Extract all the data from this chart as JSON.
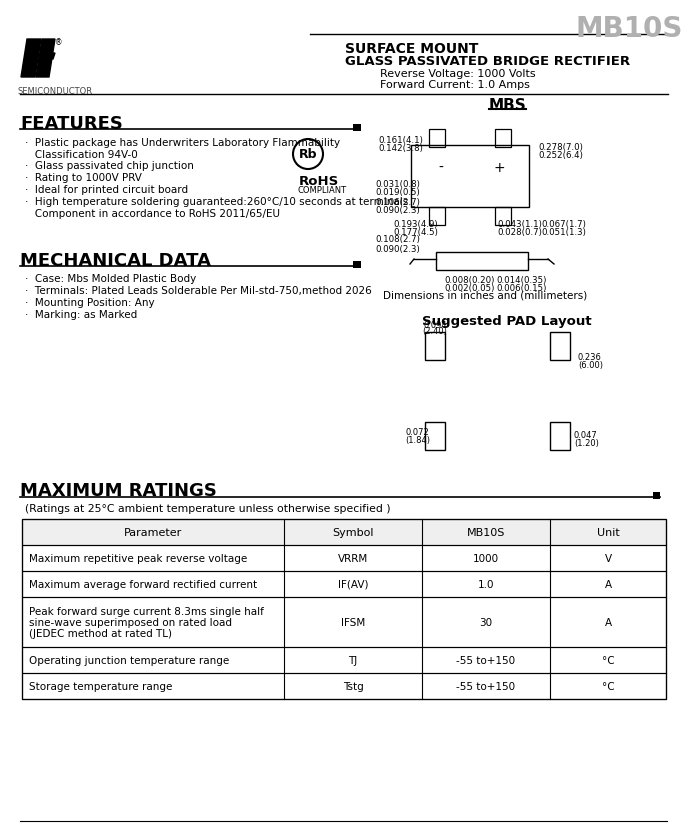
{
  "title": "MB10S",
  "subtitle1": "SURFACE MOUNT",
  "subtitle2": "GLASS PASSIVATED BRIDGE RECTIFIER",
  "rev_voltage": "Reverse Voltage: 1000 Volts",
  "fwd_current": "Forward Current: 1.0 Amps",
  "package": "MBS",
  "features_title": "FEATURES",
  "features": [
    "Plastic package has Underwriters Laboratory Flammability\n   Classification 94V-0",
    "Glass passivated chip junction",
    "Rating to 1000V PRV",
    "Ideal for printed circuit board",
    "High temperature soldering guaranteed:260°C/10 seconds at terminals\n   Component in accordance to RoHS 2011/65/EU"
  ],
  "mech_title": "MECHANICAL DATA",
  "mech_items": [
    "Case: Mbs Molded Plastic Body",
    "Terminals: Plated Leads Solderable Per Mil-std-750,method 2026",
    "Mounting Position: Any",
    "Marking: as Marked"
  ],
  "ratings_title": "MAXIMUM RATINGS",
  "ratings_note": "(Ratings at 25°C ambient temperature unless otherwise specified )",
  "table_headers": [
    "Parameter",
    "Symbol",
    "MB10S",
    "Unit"
  ],
  "table_rows": [
    [
      "Maximum repetitive peak reverse voltage",
      "VRRM",
      "1000",
      "V"
    ],
    [
      "Maximum average forward rectified current",
      "IF(AV)",
      "1.0",
      "A"
    ],
    [
      "Peak forward surge current 8.3ms single half\nsine-wave superimposed on rated load\n(JEDEC method at rated TL)",
      "IFSM",
      "30",
      "A"
    ],
    [
      "Operating junction temperature range",
      "TJ",
      "-55 to+150",
      "°C"
    ],
    [
      "Storage temperature range",
      "Tstg",
      "-55 to+150",
      "°C"
    ]
  ],
  "dim_note": "Dimensions in inches and (millimeters)",
  "pad_title": "Suggested PAD Layout",
  "semiconductor": "SEMICONDUCTOR",
  "bg_color": "#ffffff",
  "header_title_color": "#aaaaaa",
  "black": "#000000",
  "gray_bg": "#f0f0f0"
}
